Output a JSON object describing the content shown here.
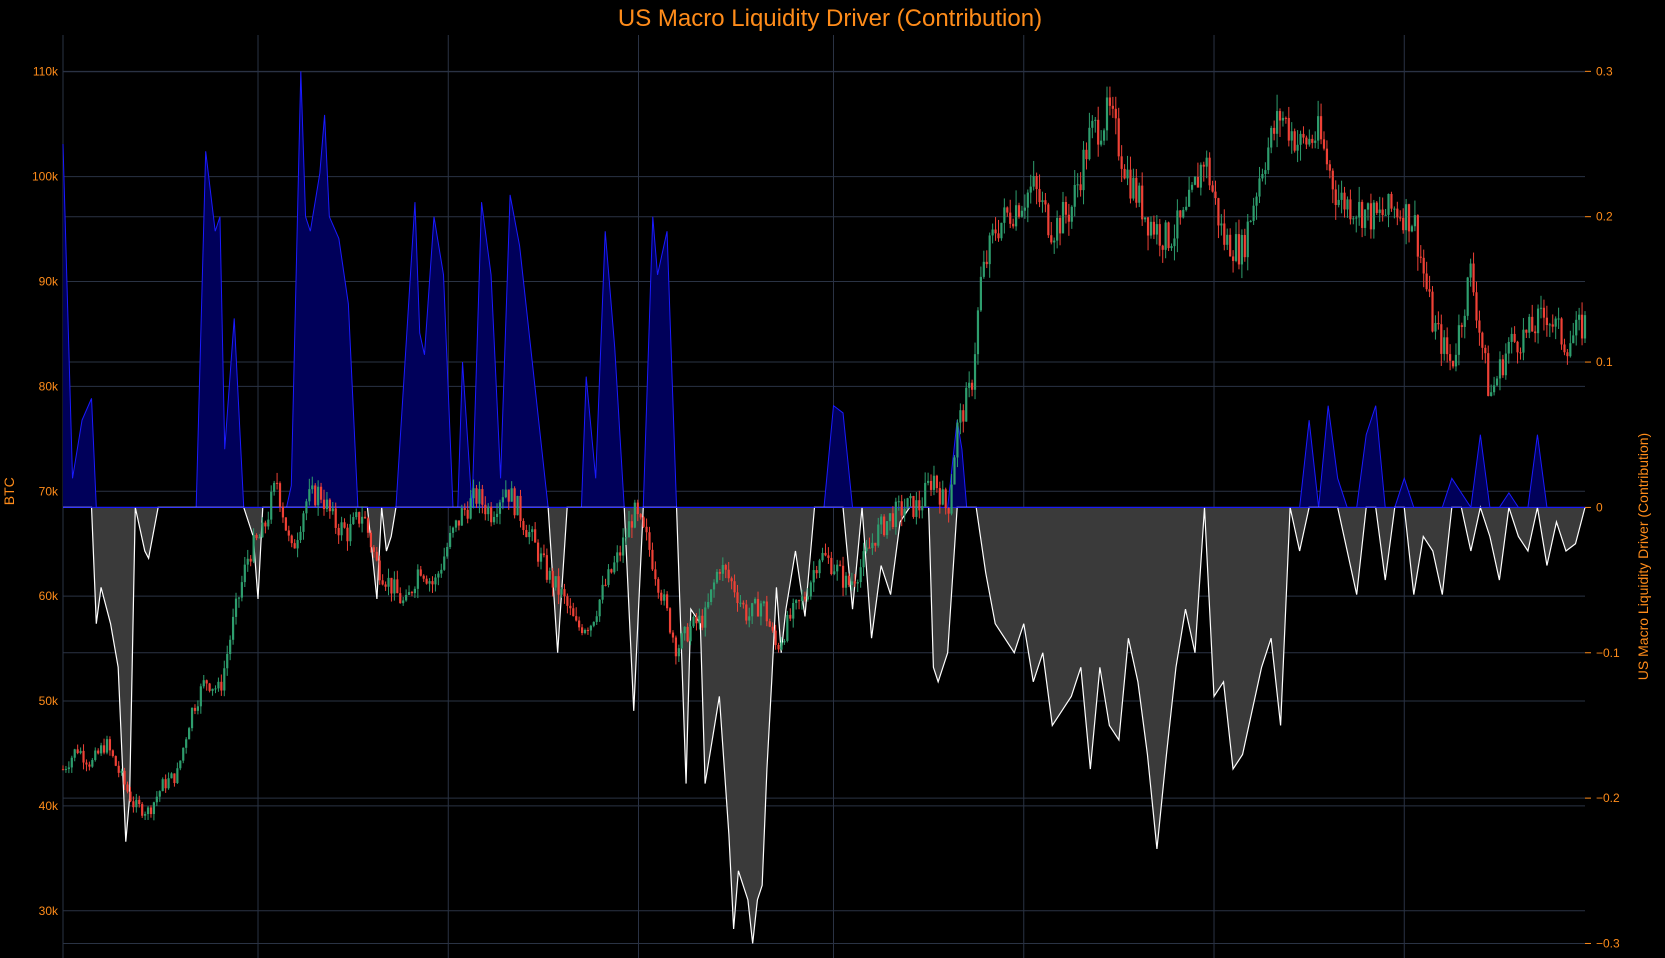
{
  "chart_data": {
    "type": "candlestick+area",
    "title": "US Macro Liquidity Driver (Contribution)",
    "y_left": {
      "label": "BTC",
      "range": [
        25500,
        113500
      ],
      "ticks": [
        30000,
        40000,
        50000,
        60000,
        70000,
        80000,
        90000,
        100000,
        110000
      ],
      "tick_labels": [
        "30k",
        "40k",
        "50k",
        "60k",
        "70k",
        "80k",
        "90k",
        "100k",
        "110k"
      ]
    },
    "y_right": {
      "label": "US Macro Liquidity Driver (Contribution)",
      "range": [
        -0.31,
        0.325
      ],
      "ticks": [
        -0.3,
        -0.2,
        -0.1,
        0,
        0.1,
        0.2,
        0.3
      ],
      "tick_labels": [
        "−0.3",
        "−0.2",
        "−0.1",
        "0",
        "0.1",
        "0.2",
        "0.3"
      ]
    },
    "grid": true,
    "colors": {
      "background": "#000000",
      "grid": "#2a3344",
      "up": "#2e9e6e",
      "down": "#ef4136",
      "positive_fill": "#00005a",
      "positive_line": "#1a1aff",
      "negative_fill": "#3a3a3a",
      "negative_line": "#ffffff",
      "text": "#ff8c1a"
    },
    "btc_close_path": [
      [
        0,
        43500
      ],
      [
        0.015,
        45500
      ],
      [
        0.03,
        44000
      ],
      [
        0.045,
        46000
      ],
      [
        0.06,
        43000
      ],
      [
        0.075,
        40000
      ],
      [
        0.09,
        39500
      ],
      [
        0.105,
        42000
      ],
      [
        0.12,
        43000
      ],
      [
        0.135,
        49000
      ],
      [
        0.15,
        52000
      ],
      [
        0.165,
        51000
      ],
      [
        0.18,
        58000
      ],
      [
        0.195,
        64000
      ],
      [
        0.21,
        66000
      ],
      [
        0.225,
        71000
      ],
      [
        0.24,
        64000
      ],
      [
        0.255,
        69000
      ],
      [
        0.27,
        70000
      ],
      [
        0.285,
        67000
      ],
      [
        0.3,
        66000
      ],
      [
        0.315,
        68000
      ],
      [
        0.33,
        63000
      ],
      [
        0.345,
        61000
      ],
      [
        0.36,
        59000
      ],
      [
        0.375,
        63000
      ],
      [
        0.39,
        61000
      ],
      [
        0.405,
        65000
      ],
      [
        0.42,
        68000
      ],
      [
        0.435,
        69500
      ],
      [
        0.45,
        68000
      ],
      [
        0.465,
        70500
      ],
      [
        0.48,
        68000
      ],
      [
        0.495,
        65000
      ],
      [
        0.51,
        62000
      ],
      [
        0.525,
        60000
      ],
      [
        0.54,
        57000
      ],
      [
        0.555,
        57500
      ],
      [
        0.57,
        61000
      ],
      [
        0.585,
        64000
      ],
      [
        0.6,
        68000
      ],
      [
        0.615,
        65000
      ],
      [
        0.63,
        60000
      ],
      [
        0.645,
        55000
      ],
      [
        0.66,
        57000
      ],
      [
        0.675,
        58000
      ],
      [
        0.69,
        63000
      ],
      [
        0.705,
        61000
      ],
      [
        0.72,
        58000
      ],
      [
        0.735,
        59500
      ],
      [
        0.75,
        55000
      ],
      [
        0.765,
        58000
      ],
      [
        0.78,
        60000
      ],
      [
        0.795,
        64000
      ],
      [
        0.81,
        63000
      ],
      [
        0.825,
        61000
      ],
      [
        0.84,
        63000
      ],
      [
        0.855,
        66000
      ],
      [
        0.87,
        67500
      ],
      [
        0.885,
        68500
      ],
      [
        0.9,
        68500
      ],
      [
        0.915,
        71500
      ],
      [
        0.93,
        68000
      ],
      [
        0.94,
        76000
      ],
      [
        0.955,
        80000
      ],
      [
        0.965,
        90000
      ],
      [
        0.98,
        95000
      ],
      [
        1.0,
        97000
      ],
      [
        1.02,
        99000
      ],
      [
        1.04,
        95000
      ],
      [
        1.06,
        97000
      ],
      [
        1.08,
        104000
      ],
      [
        1.1,
        106000
      ],
      [
        1.12,
        100000
      ],
      [
        1.14,
        96000
      ],
      [
        1.16,
        94000
      ],
      [
        1.18,
        96000
      ],
      [
        1.2,
        102000
      ],
      [
        1.22,
        94000
      ],
      [
        1.24,
        93000
      ],
      [
        1.26,
        101000
      ],
      [
        1.28,
        106000
      ],
      [
        1.3,
        103000
      ],
      [
        1.32,
        104000
      ],
      [
        1.34,
        98000
      ],
      [
        1.36,
        97000
      ],
      [
        1.38,
        96000
      ],
      [
        1.4,
        97000
      ],
      [
        1.42,
        96000
      ],
      [
        1.44,
        86000
      ],
      [
        1.46,
        82000
      ],
      [
        1.48,
        91000
      ],
      [
        1.5,
        79000
      ],
      [
        1.52,
        84000
      ],
      [
        1.54,
        85000
      ],
      [
        1.56,
        87000
      ],
      [
        1.58,
        84000
      ],
      [
        1.6,
        86000
      ]
    ],
    "liquidity_contribution": [
      [
        0,
        0.25
      ],
      [
        0.01,
        0.02
      ],
      [
        0.02,
        0.06
      ],
      [
        0.03,
        0.075
      ],
      [
        0.035,
        -0.08
      ],
      [
        0.04,
        -0.055
      ],
      [
        0.05,
        -0.08
      ],
      [
        0.058,
        -0.11
      ],
      [
        0.066,
        -0.23
      ],
      [
        0.07,
        -0.2
      ],
      [
        0.076,
        0.0
      ],
      [
        0.086,
        -0.03
      ],
      [
        0.09,
        -0.035
      ],
      [
        0.1,
        0.0
      ],
      [
        0.11,
        0.0
      ],
      [
        0.12,
        0.0
      ],
      [
        0.14,
        0.0
      ],
      [
        0.15,
        0.245
      ],
      [
        0.16,
        0.19
      ],
      [
        0.165,
        0.2
      ],
      [
        0.17,
        0.04
      ],
      [
        0.18,
        0.13
      ],
      [
        0.19,
        0.0
      ],
      [
        0.2,
        -0.02
      ],
      [
        0.205,
        -0.063
      ],
      [
        0.21,
        0.0
      ],
      [
        0.22,
        0.0
      ],
      [
        0.235,
        0.0
      ],
      [
        0.24,
        0.015
      ],
      [
        0.25,
        0.3
      ],
      [
        0.255,
        0.2
      ],
      [
        0.26,
        0.19
      ],
      [
        0.27,
        0.23
      ],
      [
        0.275,
        0.27
      ],
      [
        0.28,
        0.2
      ],
      [
        0.29,
        0.185
      ],
      [
        0.3,
        0.14
      ],
      [
        0.31,
        0.0
      ],
      [
        0.32,
        0.0
      ],
      [
        0.33,
        -0.063
      ],
      [
        0.335,
        0.0
      ],
      [
        0.34,
        -0.03
      ],
      [
        0.345,
        -0.02
      ],
      [
        0.35,
        0.0
      ],
      [
        0.37,
        0.21
      ],
      [
        0.375,
        0.12
      ],
      [
        0.38,
        0.105
      ],
      [
        0.39,
        0.2
      ],
      [
        0.4,
        0.16
      ],
      [
        0.41,
        0.0
      ],
      [
        0.415,
        0.0
      ],
      [
        0.42,
        0.1
      ],
      [
        0.43,
        0.0
      ],
      [
        0.44,
        0.21
      ],
      [
        0.45,
        0.16
      ],
      [
        0.46,
        0.02
      ],
      [
        0.47,
        0.215
      ],
      [
        0.48,
        0.18
      ],
      [
        0.49,
        0.12
      ],
      [
        0.5,
        0.06
      ],
      [
        0.51,
        0.0
      ],
      [
        0.52,
        -0.1
      ],
      [
        0.53,
        0.0
      ],
      [
        0.54,
        0.0
      ],
      [
        0.545,
        0.0
      ],
      [
        0.55,
        0.09
      ],
      [
        0.56,
        0.02
      ],
      [
        0.57,
        0.19
      ],
      [
        0.58,
        0.11
      ],
      [
        0.59,
        0.0
      ],
      [
        0.6,
        -0.14
      ],
      [
        0.61,
        0.0
      ],
      [
        0.62,
        0.2
      ],
      [
        0.625,
        0.16
      ],
      [
        0.635,
        0.19
      ],
      [
        0.645,
        0.0
      ],
      [
        0.655,
        -0.19
      ],
      [
        0.66,
        -0.07
      ],
      [
        0.67,
        -0.08
      ],
      [
        0.675,
        -0.19
      ],
      [
        0.69,
        -0.13
      ],
      [
        0.7,
        -0.225
      ],
      [
        0.705,
        -0.29
      ],
      [
        0.71,
        -0.25
      ],
      [
        0.72,
        -0.27
      ],
      [
        0.725,
        -0.3
      ],
      [
        0.73,
        -0.27
      ],
      [
        0.735,
        -0.26
      ],
      [
        0.74,
        -0.18
      ],
      [
        0.745,
        -0.12
      ],
      [
        0.75,
        -0.055
      ],
      [
        0.755,
        -0.1
      ],
      [
        0.76,
        -0.07
      ],
      [
        0.77,
        -0.03
      ],
      [
        0.78,
        -0.075
      ],
      [
        0.79,
        0.0
      ],
      [
        0.8,
        0.0
      ],
      [
        0.81,
        0.07
      ],
      [
        0.82,
        0.065
      ],
      [
        0.83,
        -0.07
      ],
      [
        0.84,
        0.0
      ],
      [
        0.85,
        -0.09
      ],
      [
        0.86,
        -0.04
      ],
      [
        0.87,
        -0.06
      ],
      [
        0.88,
        -0.01
      ],
      [
        0.89,
        0.0
      ],
      [
        0.9,
        0.0
      ],
      [
        0.91,
        0.0
      ],
      [
        0.915,
        -0.11
      ],
      [
        0.92,
        -0.12
      ],
      [
        0.93,
        -0.1
      ],
      [
        0.94,
        0.06
      ],
      [
        0.945,
        0.04
      ],
      [
        0.95,
        0.0
      ],
      [
        0.96,
        0.0
      ],
      [
        0.97,
        -0.045
      ],
      [
        0.98,
        -0.08
      ],
      [
        0.99,
        -0.09
      ],
      [
        1.0,
        -0.1
      ],
      [
        1.01,
        -0.08
      ],
      [
        1.02,
        -0.12
      ],
      [
        1.03,
        -0.1
      ],
      [
        1.04,
        -0.15
      ],
      [
        1.05,
        -0.14
      ],
      [
        1.06,
        -0.13
      ],
      [
        1.07,
        -0.11
      ],
      [
        1.08,
        -0.18
      ],
      [
        1.09,
        -0.11
      ],
      [
        1.1,
        -0.15
      ],
      [
        1.11,
        -0.16
      ],
      [
        1.12,
        -0.09
      ],
      [
        1.13,
        -0.12
      ],
      [
        1.14,
        -0.17
      ],
      [
        1.15,
        -0.235
      ],
      [
        1.16,
        -0.17
      ],
      [
        1.17,
        -0.11
      ],
      [
        1.18,
        -0.07
      ],
      [
        1.19,
        -0.1
      ],
      [
        1.2,
        0.0
      ],
      [
        1.21,
        -0.13
      ],
      [
        1.22,
        -0.12
      ],
      [
        1.23,
        -0.18
      ],
      [
        1.24,
        -0.17
      ],
      [
        1.25,
        -0.14
      ],
      [
        1.26,
        -0.11
      ],
      [
        1.27,
        -0.09
      ],
      [
        1.28,
        -0.15
      ],
      [
        1.29,
        0.0
      ],
      [
        1.3,
        -0.03
      ],
      [
        1.31,
        0.06
      ],
      [
        1.32,
        0.0
      ],
      [
        1.33,
        0.07
      ],
      [
        1.34,
        0.02
      ],
      [
        1.35,
        -0.03
      ],
      [
        1.36,
        -0.06
      ],
      [
        1.37,
        0.05
      ],
      [
        1.38,
        0.07
      ],
      [
        1.39,
        -0.05
      ],
      [
        1.4,
        0.0
      ],
      [
        1.41,
        0.02
      ],
      [
        1.42,
        -0.06
      ],
      [
        1.43,
        -0.02
      ],
      [
        1.44,
        -0.03
      ],
      [
        1.45,
        -0.06
      ],
      [
        1.46,
        0.02
      ],
      [
        1.47,
        0.01
      ],
      [
        1.48,
        -0.03
      ],
      [
        1.49,
        0.05
      ],
      [
        1.5,
        -0.02
      ],
      [
        1.51,
        -0.05
      ],
      [
        1.52,
        0.01
      ],
      [
        1.53,
        -0.02
      ],
      [
        1.54,
        -0.03
      ],
      [
        1.55,
        0.05
      ],
      [
        1.56,
        -0.04
      ],
      [
        1.57,
        -0.01
      ],
      [
        1.58,
        -0.03
      ],
      [
        1.59,
        -0.025
      ],
      [
        1.6,
        0.0
      ]
    ]
  }
}
